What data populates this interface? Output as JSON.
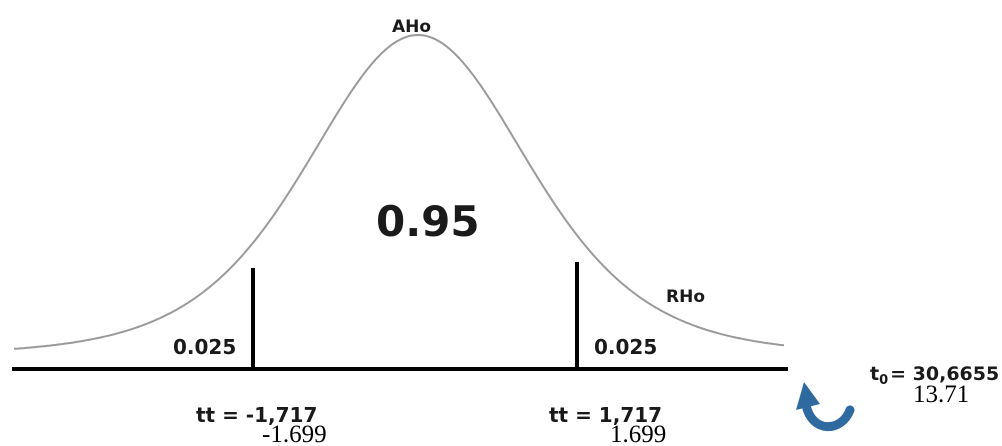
{
  "diagram": {
    "type": "t-distribution two-tailed test",
    "labels": {
      "acceptance_region": "AHo",
      "rejection_region": "RHo",
      "central_area": "0.95",
      "left_tail_area": "0.025",
      "right_tail_area": "0.025",
      "left_critical": "tt = -1,717",
      "right_critical": "tt = 1,717",
      "left_critical_alt": "-1.699",
      "right_critical_alt": "1.699",
      "t0_prefix": "t",
      "t0_subscript": "0",
      "t0_value": "= 30,6655",
      "t0_alt": "13.71"
    },
    "colors": {
      "curve": "#9a9a9a",
      "axis": "#000000",
      "critical_lines": "#000000",
      "arrow": "#2e6aa0"
    },
    "icons": {
      "t0_arrow": "curved-arrow-icon"
    }
  }
}
